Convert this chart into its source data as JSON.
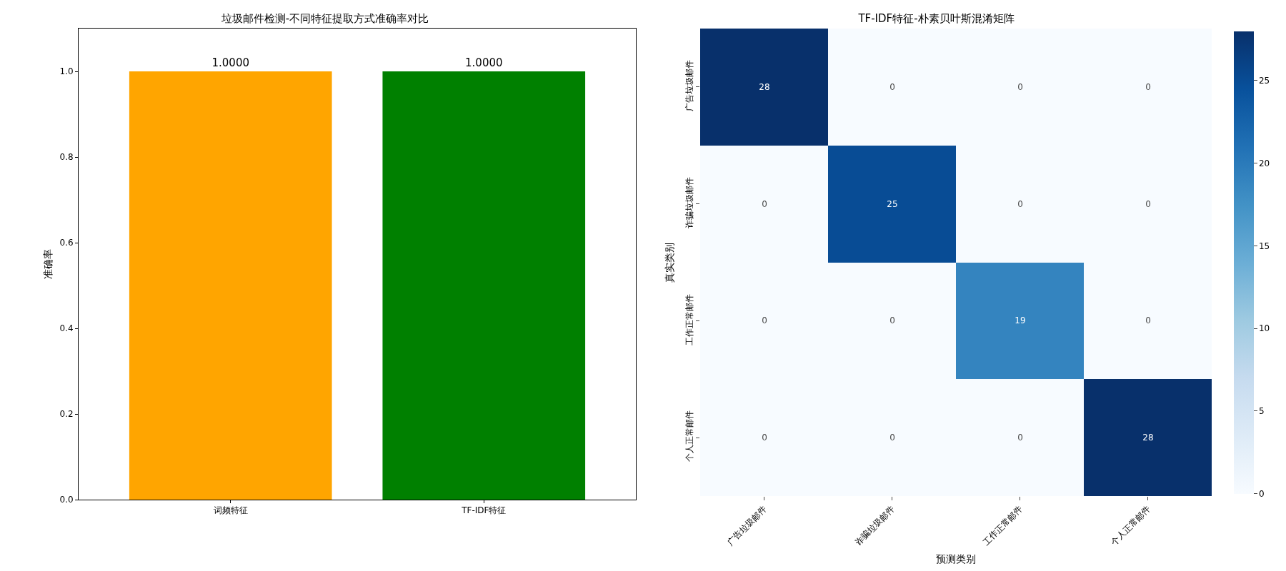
{
  "chart_data": [
    {
      "type": "bar",
      "title": "垃圾邮件检测-不同特征提取方式准确率对比",
      "ylabel": "准确率",
      "categories": [
        "词频特征",
        "TF-IDF特征"
      ],
      "values": [
        1.0,
        1.0
      ],
      "colors": [
        "#ffa500",
        "#008000"
      ],
      "value_labels": [
        "1.0000",
        "1.0000"
      ],
      "ylim": [
        0,
        1.1
      ],
      "yticks": [
        {
          "value": 0,
          "label": "0.0"
        },
        {
          "value": 0.2,
          "label": "0.2"
        },
        {
          "value": 0.4,
          "label": "0.4"
        },
        {
          "value": 0.6,
          "label": "0.6"
        },
        {
          "value": 0.8,
          "label": "0.8"
        },
        {
          "value": 1.0,
          "label": "1.0"
        }
      ],
      "grid": false
    },
    {
      "type": "heatmap",
      "title": "TF-IDF特征-朴素贝叶斯混淆矩阵",
      "xlabel": "预测类别",
      "ylabel": "真实类别",
      "categories": [
        "广告垃圾邮件",
        "诈骗垃圾邮件",
        "工作正常邮件",
        "个人正常邮件"
      ],
      "y_categories": [
        "广告垃圾邮件",
        "诈骗垃圾邮件",
        "工作正常邮件",
        "个人正常邮件"
      ],
      "cells": [
        [
          28,
          0,
          0,
          0
        ],
        [
          0,
          25,
          0,
          0
        ],
        [
          0,
          0,
          19,
          0
        ],
        [
          0,
          0,
          0,
          28
        ]
      ],
      "data_labels": true,
      "clim": [
        0,
        28
      ],
      "cticks": [
        0,
        5,
        10,
        15,
        20,
        25
      ]
    }
  ]
}
